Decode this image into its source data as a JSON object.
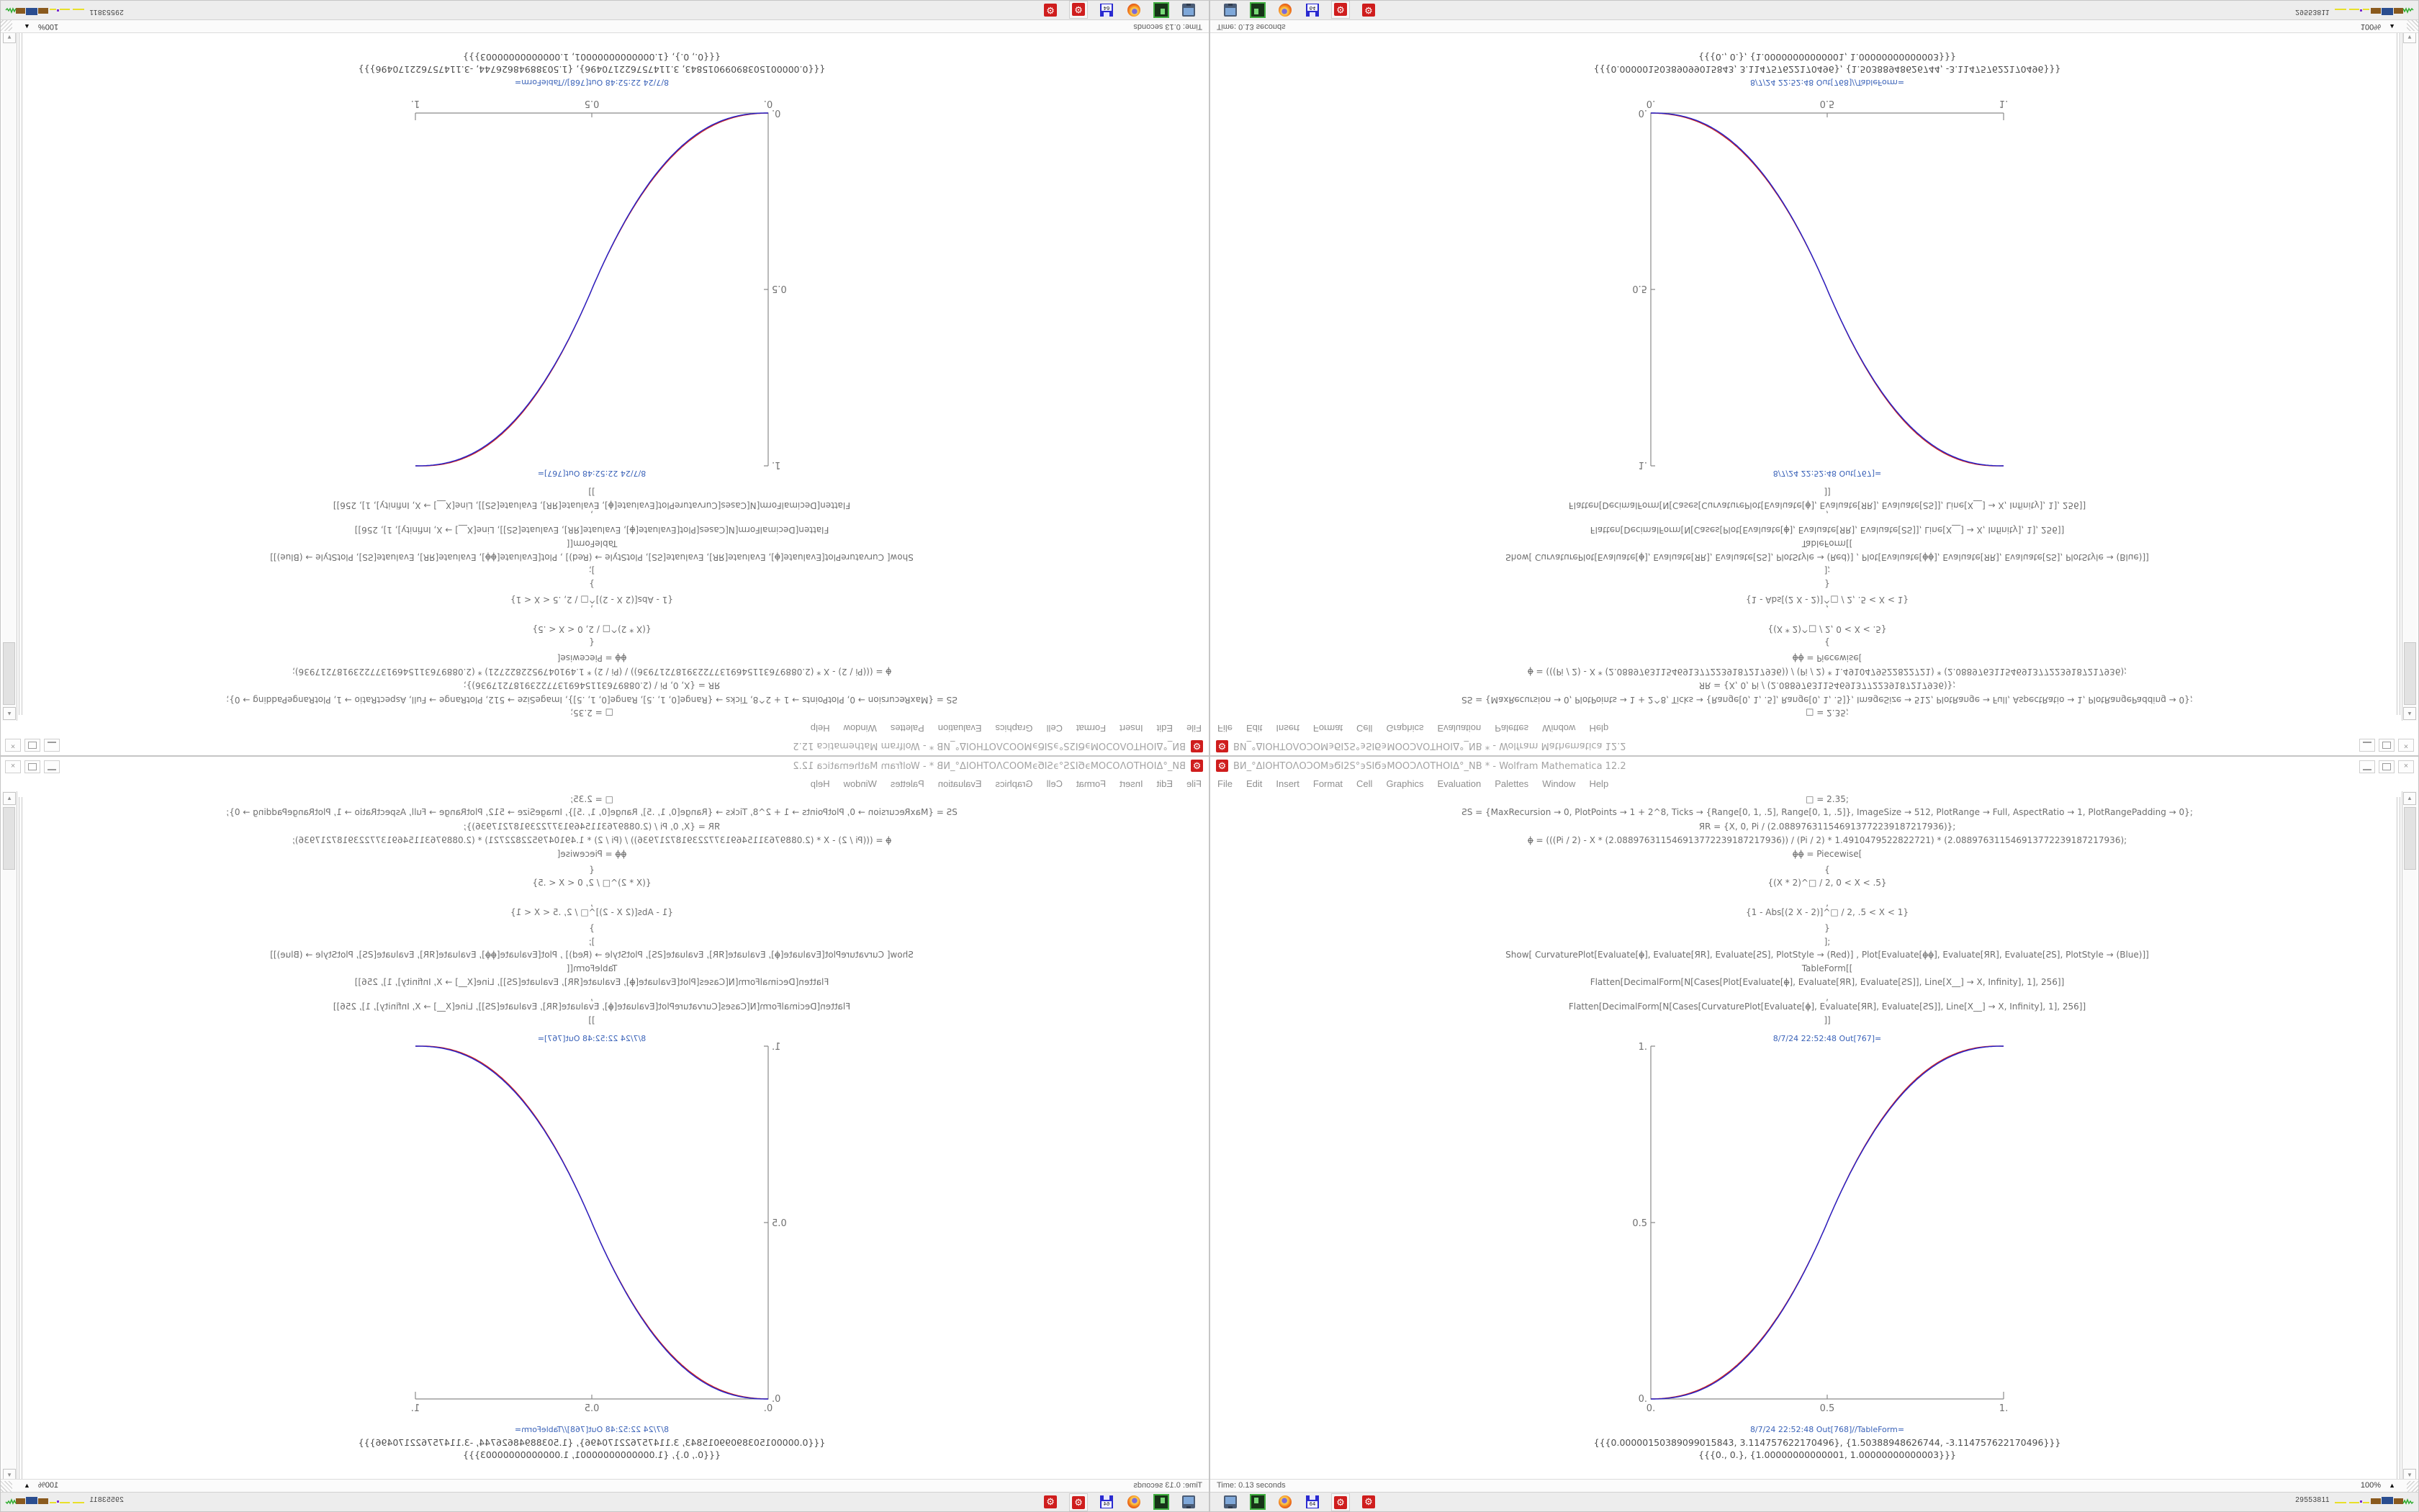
{
  "app": {
    "name": "Wolfram Mathematica 12.2"
  },
  "window": {
    "title": "ΒИ_°ΔΙΟΗΤΟΛΟϽΟΜ϶ϬΙ2Ѕ°϶ЅΙϬ϶ΜΟΟϽΛΟΤΗΟΙΔ°_ΝΒ * - Wolfram Mathematica 12.2",
    "app_icon_glyph": "⚙",
    "menu_items": [
      "File",
      "Edit",
      "Insert",
      "Format",
      "Cell",
      "Graphics",
      "Evaluation",
      "Palettes",
      "Window",
      "Help"
    ],
    "controls": {
      "close_glyph": "×"
    },
    "status": {
      "time": "Time: 0.13 seconds",
      "zoom_level": "100%",
      "zoom_arrow": "▲"
    },
    "scrollbar": {
      "up_glyph": "▲",
      "down_glyph": "▼"
    }
  },
  "notebook": {
    "lines": [
      {
        "y": 4,
        "cls": "code",
        "text": "□ = 2.35;"
      },
      {
        "y": 22,
        "cls": "code",
        "text": "ƧS = {MaxRecursion → 0, PlotPoints → 1 + 2^8, Ticks → {Range[0, 1, .5], Range[0, 1, .5]}, ImageSize → 512, PlotRange → Full, AspectRatio → 1, PlotRangePadding → 0};"
      },
      {
        "y": 42,
        "cls": "code",
        "text": "ЯR = {X, 0, Pi / (2.088976311546913772239187217936)};"
      },
      {
        "y": 61,
        "cls": "code",
        "text": "ϕ̶ = (((Pi / 2) - X * (2.088976311546913772239187217936)) / (Pi / 2) * 1.4910479522822721) * (2.088976311546913772239187217936);"
      },
      {
        "y": 80,
        "cls": "code",
        "text": "ϕ̶ϕ̶ = Piecewise["
      },
      {
        "y": 102,
        "cls": "code",
        "text": "{"
      },
      {
        "y": 120,
        "cls": "code",
        "text": "{(X * 2)^□ / 2, 0 < X < .5}"
      },
      {
        "y": 148,
        "cls": "code",
        "text": ","
      },
      {
        "y": 161,
        "cls": "code",
        "text": "{1 - Abs[(2 X - 2)]^□ / 2, .5 < X < 1}"
      },
      {
        "y": 183,
        "cls": "code",
        "text": "}"
      },
      {
        "y": 202,
        "cls": "code",
        "text": "];"
      },
      {
        "y": 220,
        "cls": "code",
        "text": "Show[  CurvaturePlot[Evaluate[ϕ̶], Evaluate[ЯR], Evaluate[ƧS], PlotStyle → (Red)]  ,  Plot[Evaluate[ϕ̶ϕ̶], Evaluate[ЯR], Evaluate[ƧS], PlotStyle → (Blue)]]"
      },
      {
        "y": 239,
        "cls": "code",
        "text": "TableForm[["
      },
      {
        "y": 258,
        "cls": "code",
        "text": "Flatten[DecimalForm[N[Cases[Plot[Evaluate[ϕ̶], Evaluate[ЯR], Evaluate[ƧS]], Line[X__] → X, Infinity], 1], 256]]"
      },
      {
        "y": 279,
        "cls": "code",
        "text": ","
      },
      {
        "y": 292,
        "cls": "code",
        "text": "Flatten[DecimalForm[N[Cases[CurvaturePlot[Evaluate[ϕ̶], Evaluate[ЯR], Evaluate[ƧS]], Line[X__] → X, Infinity], 1], 256]]"
      },
      {
        "y": 311,
        "cls": "code",
        "text": "]]"
      },
      {
        "y": 337,
        "cls": "label",
        "text": "8/7/24 22:52:48 Out[767]="
      },
      {
        "y": 880,
        "cls": "label",
        "text": "8/7/24 22:52:48 Out[768]//TableForm="
      },
      {
        "y": 897,
        "cls": "out",
        "text": "{{{0.00000150389099015843, 3.114757622170496}, {1.50388948626744, -3.114757622170496}}}"
      },
      {
        "y": 914,
        "cls": "out",
        "text": "{{{0., 0.}, {1.00000000000001, 1.00000000000003}}}"
      }
    ]
  },
  "chart_data": {
    "type": "line",
    "title": "",
    "xlabel": "",
    "ylabel": "",
    "xlim": [
      0,
      1
    ],
    "ylim": [
      0,
      1
    ],
    "xticks": [
      "0.",
      "0.5",
      "1."
    ],
    "yticks": [
      "0.",
      "0.5",
      "1."
    ],
    "grid": false,
    "legend": null,
    "exponent": 2.35,
    "x": [
      0,
      0.05,
      0.1,
      0.15,
      0.2,
      0.25,
      0.3,
      0.35,
      0.4,
      0.45,
      0.5,
      0.55,
      0.6,
      0.65,
      0.7,
      0.75,
      0.8,
      0.85,
      0.9,
      0.95,
      1
    ],
    "series": [
      {
        "name": "CurvaturePlot (Red)",
        "color": "#cc2222",
        "values": [
          0,
          0.0022,
          0.0114,
          0.0295,
          0.058,
          0.098,
          0.1505,
          0.2163,
          0.2959,
          0.3903,
          0.5,
          0.6097,
          0.7041,
          0.7837,
          0.8495,
          0.902,
          0.942,
          0.9705,
          0.9886,
          0.9978,
          1
        ]
      },
      {
        "name": "Plot Piecewise (Blue)",
        "color": "#2222cc",
        "values": [
          0,
          0.0022,
          0.0114,
          0.0295,
          0.058,
          0.098,
          0.1505,
          0.2163,
          0.2959,
          0.3903,
          0.5,
          0.6097,
          0.7041,
          0.7837,
          0.8495,
          0.902,
          0.942,
          0.9705,
          0.9886,
          0.9978,
          1
        ]
      }
    ]
  },
  "taskbar": {
    "icons": [
      {
        "id": "monitor"
      },
      {
        "id": "drive"
      },
      {
        "id": "firefox"
      },
      {
        "id": "floppy",
        "label": "64"
      },
      {
        "id": "mathematica",
        "active": true,
        "glyph": "⚙"
      },
      {
        "id": "mathematica",
        "glyph": "⚙"
      }
    ],
    "tray": {
      "number": "29553811"
    }
  }
}
